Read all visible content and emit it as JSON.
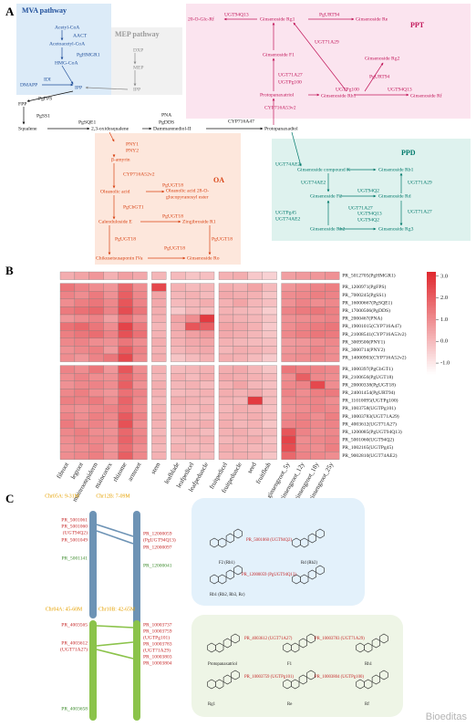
{
  "panel_labels": [
    "A",
    "B",
    "C"
  ],
  "pathway": {
    "boxes": [
      "MVA pathway",
      "MEP pathway",
      "PPT",
      "OA",
      "PPD"
    ],
    "nodes": [
      "Acetyl-CoA",
      "AACT",
      "Acetoacetyl-CoA",
      "PgHMGR1",
      "HMG-CoA",
      "DMAPP",
      "IDI",
      "IPP",
      "DXP",
      "MEP",
      "IPP",
      "PgFPS",
      "FPP",
      "PgSS1",
      "Squalene",
      "PgSQE1",
      "2,3-oxidosqualene",
      "PNA",
      "PgDDS",
      "Dammarenediol-II",
      "CYP716A47",
      "Protopanaxadiol",
      "20-O-Glc-Rf",
      "UGT94Q13",
      "Ginsenoside Rg1",
      "PgURT94",
      "Ginsenoside Re",
      "UGT71A29",
      "Ginsenoside F1",
      "Ginsenoside Rg2",
      "PgURT94",
      "UGT71A27",
      "UGTPg100",
      "UGTPg100",
      "Protopanaxatriol",
      "Ginsenoside Rh1",
      "UGT94Q13",
      "Ginsenoside Rf",
      "CYP716A53v2",
      "PNY1",
      "PNY2",
      "β-amyrin",
      "CYP716A52v2",
      "Oleanolic acid",
      "PgUGT18",
      "Oleanolic acid 28-O-",
      "glucopyranosyl ester",
      "PgCbGT1",
      "Calenduloside E",
      "PgUGT18",
      "Zingibroside R1",
      "PgUGT18",
      "PgUGT18",
      "PgUGT18",
      "Chikusetsusaponin IVa",
      "Ginsenoside Ro",
      "UGT74AE2",
      "Ginsenoside compound K",
      "Ginsenoside Rb1",
      "UGT74AE2",
      "UGT94Q2",
      "UGT71A29",
      "Ginsenoside F2",
      "Ginsenoside Rd",
      "UGT71A27",
      "UGTPg45",
      "UGT74AE2",
      "UGT94Q13",
      "UGT94Q2",
      "UGT71A27",
      "Ginsenoside Rh2",
      "Ginsenoside Rg3"
    ]
  },
  "chart_data": {
    "type": "heatmap",
    "columns": [
      "fibroot",
      "legroot",
      "mainrootepiderm",
      "maincortex",
      "rhizome",
      "armroot",
      "stem",
      "leafblade",
      "leafpedicel",
      "leafpeduncle",
      "fruitpedicel",
      "fruitpeduncle",
      "seed",
      "fruitflesh",
      "ginsengroot_5y",
      "ginsengroot_12y",
      "ginsengroot_18y",
      "ginsengroot_25y"
    ],
    "rows": [
      "PR_5012705(PgHMGR1)",
      "PR_1200971(PgFPS)",
      "PR_7000245(PgSS1)",
      "PR_16000667(PgSQE1)",
      "PR_17000506(PgDDS)",
      "PR_2000467(PNA)",
      "PR_19001015(CYP716A47)",
      "PR_21008541(CYP716A53v2)",
      "PR_3009500(PNY1)",
      "PR_3000714(PNY2)",
      "PR_14000903(CYP716A52v2)",
      "PR_1000397(PgCbGT1)",
      "PR_2100656(PgUGT18)",
      "PR_20000338(PgUGT18)",
      "PR_24001454(PgURT94)",
      "PR_11010095(UGTPg100)",
      "PR_1003758(UGTPg101)",
      "PR_10003783(UGT71A29)",
      "PR_4003612(UGT71A27)",
      "PR_1200085(PgUGT94Q13)",
      "PR_5001060(UGT94Q2)",
      "PR_1002165(UGTPg45)",
      "PR_9002810(UGT74AE2)"
    ],
    "values": [
      [
        0.3,
        0.5,
        0.8,
        0.2,
        0.6,
        0.4,
        0.1,
        0.0,
        -0.2,
        -0.1,
        0.2,
        0.3,
        -0.3,
        -0.5,
        0.6,
        0.7,
        0.8,
        0.9
      ],
      [
        1.5,
        1.2,
        1.0,
        0.8,
        1.8,
        1.0,
        2.5,
        0.2,
        0.0,
        0.1,
        0.3,
        0.2,
        0.5,
        0.0,
        0.8,
        1.0,
        1.2,
        1.3
      ],
      [
        1.2,
        1.0,
        1.4,
        0.9,
        2.0,
        1.1,
        0.5,
        0.1,
        0.2,
        0.0,
        0.4,
        0.3,
        0.2,
        -0.2,
        1.0,
        1.1,
        1.3,
        1.2
      ],
      [
        1.0,
        1.3,
        1.5,
        1.1,
        2.2,
        1.2,
        0.4,
        0.0,
        0.1,
        0.3,
        0.2,
        0.5,
        0.1,
        -0.1,
        0.9,
        1.2,
        1.0,
        1.1
      ],
      [
        1.4,
        1.6,
        1.8,
        1.2,
        2.4,
        1.5,
        0.3,
        -0.3,
        0.1,
        0.0,
        0.2,
        0.1,
        0.0,
        -0.4,
        1.2,
        1.4,
        1.5,
        1.3
      ],
      [
        0.8,
        1.0,
        1.2,
        0.6,
        1.6,
        0.9,
        0.2,
        0.5,
        1.0,
        2.8,
        0.3,
        0.2,
        0.1,
        -0.2,
        0.9,
        1.0,
        1.1,
        1.2
      ],
      [
        1.6,
        1.8,
        1.5,
        1.0,
        2.6,
        1.4,
        0.1,
        0.4,
        2.2,
        2.0,
        0.5,
        0.4,
        0.2,
        -0.3,
        1.0,
        1.2,
        1.4,
        1.5
      ],
      [
        1.3,
        1.5,
        1.7,
        1.2,
        2.3,
        1.6,
        0.2,
        0.3,
        0.6,
        0.8,
        0.4,
        0.3,
        0.1,
        -0.2,
        1.1,
        1.3,
        1.5,
        1.4
      ],
      [
        1.1,
        1.2,
        1.0,
        0.9,
        1.5,
        1.0,
        0.3,
        0.2,
        0.4,
        0.5,
        0.2,
        0.1,
        0.0,
        -0.1,
        0.7,
        0.8,
        1.0,
        1.1
      ],
      [
        0.9,
        1.1,
        1.3,
        0.7,
        2.0,
        1.2,
        0.2,
        0.1,
        0.3,
        0.4,
        0.1,
        0.3,
        0.2,
        0.0,
        0.8,
        0.9,
        1.2,
        1.0
      ],
      [
        1.0,
        0.8,
        1.2,
        1.5,
        2.5,
        1.1,
        0.3,
        -0.2,
        0.0,
        0.2,
        0.3,
        0.2,
        0.0,
        -0.3,
        0.9,
        1.0,
        1.1,
        1.0
      ],
      [
        1.2,
        1.0,
        1.5,
        0.8,
        2.2,
        1.0,
        0.2,
        0.0,
        0.1,
        0.2,
        0.3,
        0.4,
        0.1,
        -0.2,
        1.5,
        1.3,
        1.2,
        1.1
      ],
      [
        1.0,
        1.2,
        1.0,
        0.9,
        1.8,
        1.1,
        0.1,
        0.2,
        0.0,
        0.3,
        0.4,
        0.3,
        0.2,
        0.0,
        1.0,
        2.0,
        1.1,
        1.0
      ],
      [
        0.9,
        1.1,
        1.2,
        1.0,
        2.0,
        0.9,
        0.3,
        0.1,
        0.2,
        0.0,
        0.2,
        0.5,
        0.1,
        -0.1,
        1.1,
        1.2,
        2.5,
        1.0
      ],
      [
        1.1,
        1.3,
        1.0,
        0.8,
        1.6,
        1.2,
        0.2,
        0.0,
        0.1,
        0.2,
        0.3,
        0.2,
        0.4,
        0.0,
        1.2,
        1.0,
        1.3,
        1.4
      ],
      [
        1.3,
        1.2,
        1.4,
        1.0,
        1.9,
        1.1,
        0.1,
        0.3,
        0.2,
        0.1,
        0.2,
        0.1,
        2.8,
        0.0,
        1.0,
        1.1,
        1.2,
        1.0
      ],
      [
        1.0,
        0.9,
        1.1,
        1.2,
        1.7,
        1.0,
        0.2,
        0.1,
        0.0,
        0.2,
        0.1,
        0.3,
        0.2,
        -0.1,
        0.9,
        1.0,
        1.2,
        1.1
      ],
      [
        1.2,
        1.0,
        1.3,
        1.1,
        2.1,
        1.2,
        0.3,
        0.0,
        0.1,
        0.0,
        0.2,
        0.2,
        0.3,
        0.0,
        1.1,
        1.2,
        1.0,
        1.3
      ],
      [
        1.4,
        1.1,
        1.2,
        1.0,
        2.3,
        1.0,
        0.2,
        0.2,
        0.1,
        0.3,
        0.3,
        0.1,
        0.2,
        -0.2,
        1.2,
        1.3,
        1.1,
        1.2
      ],
      [
        1.1,
        1.3,
        1.0,
        0.9,
        1.8,
        1.1,
        0.1,
        0.1,
        0.2,
        0.0,
        0.2,
        0.3,
        0.1,
        0.0,
        2.2,
        1.2,
        1.0,
        1.1
      ],
      [
        1.0,
        1.2,
        1.1,
        1.0,
        1.9,
        1.2,
        0.2,
        0.0,
        0.1,
        0.2,
        0.1,
        0.2,
        0.3,
        -0.1,
        2.6,
        1.0,
        1.1,
        1.2
      ],
      [
        0.9,
        1.0,
        1.2,
        0.8,
        1.7,
        1.0,
        0.1,
        0.2,
        0.0,
        0.1,
        0.3,
        0.2,
        0.1,
        0.0,
        2.4,
        1.1,
        1.0,
        1.3
      ],
      [
        1.0,
        1.1,
        1.3,
        0.9,
        2.0,
        1.1,
        0.2,
        0.1,
        0.2,
        0.0,
        0.2,
        0.3,
        0.2,
        -0.2,
        1.8,
        1.2,
        1.1,
        1.0
      ]
    ],
    "colors": [
      "#ffffff",
      "#e0282e"
    ],
    "clim": [
      -1.5,
      3.2
    ],
    "cticks": [
      {
        "value": 3,
        "label": "3.0"
      },
      {
        "value": 2,
        "label": "2.0"
      },
      {
        "value": 1,
        "label": "1.0"
      },
      {
        "value": 0,
        "label": "0.0"
      },
      {
        "value": -1,
        "label": "-1.0"
      }
    ]
  },
  "synteny": {
    "chromosomes": [
      "Chr05A: 9-31M",
      "Chr12B: 7-09M",
      "Chr04A: 45-60M",
      "Chr10B: 42-65M"
    ],
    "genes": [
      "PR_5001061",
      "PR_5001060",
      "(UGT94Q2)",
      "PR_5001049",
      "PR_5001141",
      "PR_12000059",
      "(PgUGT94Q13)",
      "PR_12000097",
      "PR_12000041",
      "PR_4003565",
      "PR_4003612",
      "(UGT71A27)",
      "PR_4003658",
      "PR_10003737",
      "PR_10003759",
      "(UGTPg101)",
      "PR_10003783",
      "(UGT71A29)",
      "PR_10003803",
      "PR_10003804"
    ],
    "structures": [
      "F2 (Rb1)",
      "Rd (Rb2)",
      "PR_5001060 (UGT94Q2)",
      "PR_12000059 (PgUGT94Q13)",
      "Rb1 (Rb2, Rb3, Rc)",
      "Protopanaxatriol",
      "F1",
      "Rh1",
      "Rg1",
      "Re",
      "Rf",
      "PR_4003612 (UGT71A27)",
      "PR_10003783 (UGT71A29)",
      "PR_10003759 (UGTPg101)",
      "PR_10003804 (UGTPg100)"
    ]
  },
  "watermark": "Bioeditas"
}
